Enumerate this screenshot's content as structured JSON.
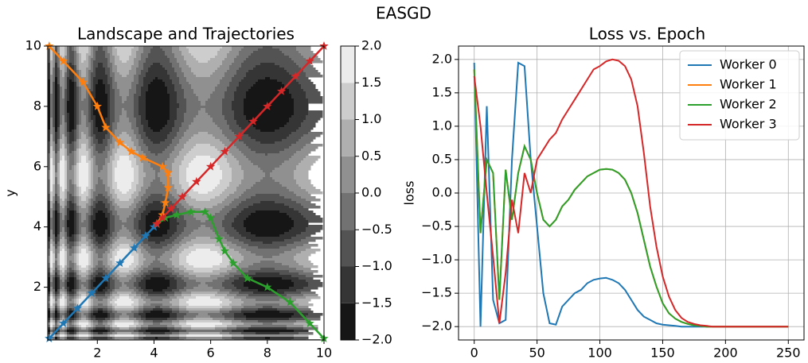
{
  "title": "EASGD",
  "chart_data": [
    {
      "type": "contour",
      "title": "Landscape and Trajectories",
      "ylabel": "y",
      "xlim": [
        0.25,
        10
      ],
      "ylim": [
        0.25,
        10
      ],
      "xticks": [
        2,
        4,
        6,
        8,
        10
      ],
      "yticks": [
        2,
        4,
        6,
        8,
        10
      ],
      "colorbar": {
        "ylim": [
          -2,
          2
        ],
        "yticks": [
          {
            "value": -2,
            "label": "−2.0"
          },
          {
            "value": -1.5,
            "label": "−1.5"
          },
          {
            "value": -1,
            "label": "−1.0"
          },
          {
            "value": -0.5,
            "label": "−0.5"
          },
          {
            "value": 0,
            "label": "0.0"
          },
          {
            "value": 0.5,
            "label": "0.5"
          },
          {
            "value": 1,
            "label": "1.0"
          },
          {
            "value": 1.5,
            "label": "1.5"
          },
          {
            "value": 2,
            "label": "2.0"
          }
        ]
      },
      "series": [
        {
          "color": "#1f77b4",
          "x": [
            0.3,
            0.8,
            1.3,
            1.8,
            2.3,
            2.8,
            3.3,
            3.7,
            4.0,
            4.1
          ],
          "y": [
            0.3,
            0.8,
            1.3,
            1.8,
            2.3,
            2.8,
            3.3,
            3.7,
            4.0,
            4.1
          ]
        },
        {
          "color": "#ff7f0e",
          "x": [
            0.3,
            0.8,
            1.5,
            2.0,
            2.3,
            2.8,
            3.2,
            3.6,
            4.3,
            4.5,
            4.5,
            4.4,
            4.3,
            4.1
          ],
          "y": [
            10,
            9.5,
            8.8,
            8.0,
            7.3,
            6.8,
            6.5,
            6.3,
            6.0,
            5.8,
            5.3,
            4.8,
            4.4,
            4.1
          ]
        },
        {
          "color": "#2ca02c",
          "x": [
            10,
            9.5,
            8.8,
            8.0,
            7.3,
            6.8,
            6.5,
            6.3,
            6.0,
            5.8,
            5.3,
            4.8,
            4.4,
            4.1
          ],
          "y": [
            0.3,
            0.8,
            1.5,
            2.0,
            2.3,
            2.8,
            3.2,
            3.6,
            4.3,
            4.5,
            4.5,
            4.4,
            4.3,
            4.1
          ]
        },
        {
          "color": "#d62728",
          "x": [
            10,
            9.5,
            9,
            8.5,
            8,
            7.5,
            7,
            6.5,
            6,
            5.5,
            5,
            4.6,
            4.3,
            4.1
          ],
          "y": [
            10,
            9.5,
            9,
            8.5,
            8,
            7.5,
            7,
            6.5,
            6,
            5.5,
            5,
            4.6,
            4.3,
            4.1
          ]
        }
      ]
    },
    {
      "type": "line",
      "title": "Loss vs. Epoch",
      "ylabel": "loss",
      "grid": true,
      "legend": "upper right",
      "x": [
        0,
        5,
        10,
        15,
        20,
        25,
        30,
        35,
        40,
        45,
        50,
        55,
        60,
        65,
        70,
        75,
        80,
        85,
        90,
        95,
        100,
        105,
        110,
        115,
        120,
        125,
        130,
        135,
        140,
        145,
        150,
        155,
        160,
        165,
        170,
        175,
        180,
        185,
        190,
        195,
        200,
        205,
        210,
        215,
        220,
        225,
        230,
        235,
        240,
        245,
        250
      ],
      "xlim": [
        -12.5,
        262.5
      ],
      "ylim": [
        -2.2,
        2.2
      ],
      "xticks": [
        0,
        50,
        100,
        150,
        200,
        250
      ],
      "yticks": [
        {
          "value": -2,
          "label": "−2.0"
        },
        {
          "value": -1.5,
          "label": "−1.5"
        },
        {
          "value": -1,
          "label": "−1.0"
        },
        {
          "value": -0.5,
          "label": "−0.5"
        },
        {
          "value": 0,
          "label": "0.0"
        },
        {
          "value": 0.5,
          "label": "0.5"
        },
        {
          "value": 1,
          "label": "1.0"
        },
        {
          "value": 1.5,
          "label": "1.5"
        },
        {
          "value": 2,
          "label": "2.0"
        }
      ],
      "series": [
        {
          "name": "Worker 0",
          "color": "#1f77b4",
          "values": [
            1.95,
            -2.0,
            1.3,
            -1.6,
            -1.95,
            -1.9,
            0.5,
            1.95,
            1.9,
            0.5,
            -0.5,
            -1.5,
            -1.95,
            -1.97,
            -1.7,
            -1.6,
            -1.5,
            -1.45,
            -1.35,
            -1.3,
            -1.28,
            -1.27,
            -1.3,
            -1.35,
            -1.45,
            -1.6,
            -1.75,
            -1.85,
            -1.9,
            -1.95,
            -1.97,
            -1.98,
            -1.99,
            -2,
            -2,
            -2,
            -2,
            -2,
            -2,
            -2,
            -2,
            -2,
            -2,
            -2,
            -2,
            -2,
            -2,
            -2,
            -2,
            -2,
            -2
          ]
        },
        {
          "name": "Worker 1",
          "color": "#ff7f0e",
          "values": [
            1.85,
            -0.6,
            0.5,
            0.3,
            -1.6,
            0.35,
            -0.4,
            0.3,
            0.7,
            0.5,
            0.0,
            -0.4,
            -0.5,
            -0.4,
            -0.2,
            -0.1,
            0.05,
            0.15,
            0.25,
            0.3,
            0.35,
            0.36,
            0.35,
            0.3,
            0.2,
            0.0,
            -0.3,
            -0.7,
            -1.1,
            -1.4,
            -1.65,
            -1.8,
            -1.88,
            -1.93,
            -1.96,
            -1.98,
            -1.99,
            -2,
            -2,
            -2,
            -2,
            -2,
            -2,
            -2,
            -2,
            -2,
            -2,
            -2,
            -2,
            -2,
            -2
          ]
        },
        {
          "name": "Worker 2",
          "color": "#2ca02c",
          "values": [
            1.85,
            -0.6,
            0.5,
            0.3,
            -1.6,
            0.35,
            -0.4,
            0.3,
            0.7,
            0.5,
            0.0,
            -0.4,
            -0.5,
            -0.4,
            -0.2,
            -0.1,
            0.05,
            0.15,
            0.25,
            0.3,
            0.35,
            0.36,
            0.35,
            0.3,
            0.2,
            0.0,
            -0.3,
            -0.7,
            -1.1,
            -1.4,
            -1.65,
            -1.8,
            -1.88,
            -1.93,
            -1.96,
            -1.98,
            -1.99,
            -2,
            -2,
            -2,
            -2,
            -2,
            -2,
            -2,
            -2,
            -2,
            -2,
            -2,
            -2,
            -2,
            -2
          ]
        },
        {
          "name": "Worker 3",
          "color": "#d62728",
          "values": [
            1.75,
            1.0,
            0.0,
            -0.95,
            -1.95,
            -1.2,
            -0.1,
            -0.6,
            0.3,
            0.0,
            0.5,
            0.65,
            0.8,
            0.9,
            1.1,
            1.25,
            1.4,
            1.55,
            1.7,
            1.85,
            1.9,
            1.97,
            2.0,
            1.98,
            1.9,
            1.7,
            1.3,
            0.6,
            -0.2,
            -0.8,
            -1.25,
            -1.55,
            -1.75,
            -1.87,
            -1.93,
            -1.96,
            -1.98,
            -1.99,
            -2,
            -2,
            -2,
            -2,
            -2,
            -2,
            -2,
            -2,
            -2,
            -2,
            -2,
            -2,
            -2
          ]
        }
      ]
    }
  ]
}
